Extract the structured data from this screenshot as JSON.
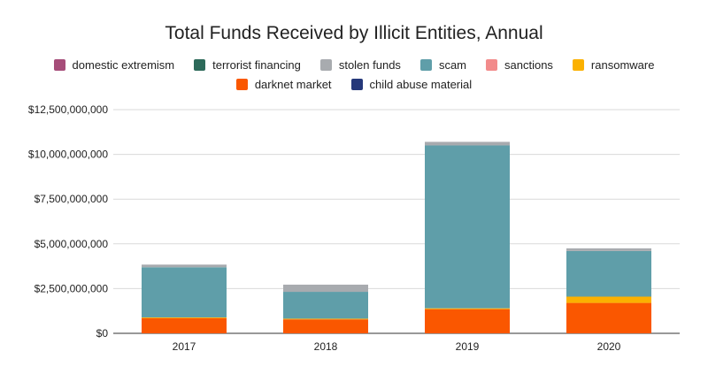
{
  "chart_data": {
    "type": "bar",
    "stacked": true,
    "title": "Total Funds Received by Illicit Entities, Annual",
    "xlabel": "",
    "ylabel": "",
    "categories": [
      "2017",
      "2018",
      "2019",
      "2020"
    ],
    "ylim": [
      0,
      12500000000
    ],
    "yticks": [
      {
        "value": 0,
        "label": "$0"
      },
      {
        "value": 2500000000,
        "label": "$2,500,000,000"
      },
      {
        "value": 5000000000,
        "label": "$5,000,000,000"
      },
      {
        "value": 7500000000,
        "label": "$7,500,000,000"
      },
      {
        "value": 10000000000,
        "label": "$10,000,000,000"
      },
      {
        "value": 12500000000,
        "label": "$12,500,000,000"
      }
    ],
    "grid": true,
    "legend_position": "top",
    "legend_rows": [
      [
        "domestic extremism",
        "terrorist financing",
        "stolen funds",
        "scam",
        "sanctions",
        "ransomware"
      ],
      [
        "darknet market",
        "child abuse material"
      ]
    ],
    "series": [
      {
        "name": "domestic extremism",
        "color": "#a64d79",
        "values": [
          0,
          0,
          0,
          0
        ]
      },
      {
        "name": "terrorist financing",
        "color": "#2d6a5a",
        "values": [
          0,
          0,
          0,
          0
        ]
      },
      {
        "name": "stolen funds",
        "color": "#a8abaf",
        "values": [
          150000000,
          400000000,
          200000000,
          150000000
        ]
      },
      {
        "name": "scam",
        "color": "#5f9ea9",
        "values": [
          2800000000,
          1500000000,
          9100000000,
          2550000000
        ]
      },
      {
        "name": "sanctions",
        "color": "#f28b8b",
        "values": [
          0,
          0,
          0,
          0
        ]
      },
      {
        "name": "ransomware",
        "color": "#fbb100",
        "values": [
          40000000,
          40000000,
          50000000,
          350000000
        ]
      },
      {
        "name": "darknet market",
        "color": "#fa5700",
        "values": [
          850000000,
          780000000,
          1350000000,
          1700000000
        ]
      },
      {
        "name": "child abuse material",
        "color": "#25387a",
        "values": [
          0,
          0,
          0,
          0
        ]
      }
    ],
    "stack_order": [
      "child abuse material",
      "darknet market",
      "ransomware",
      "sanctions",
      "scam",
      "stolen funds",
      "terrorist financing",
      "domestic extremism"
    ]
  }
}
